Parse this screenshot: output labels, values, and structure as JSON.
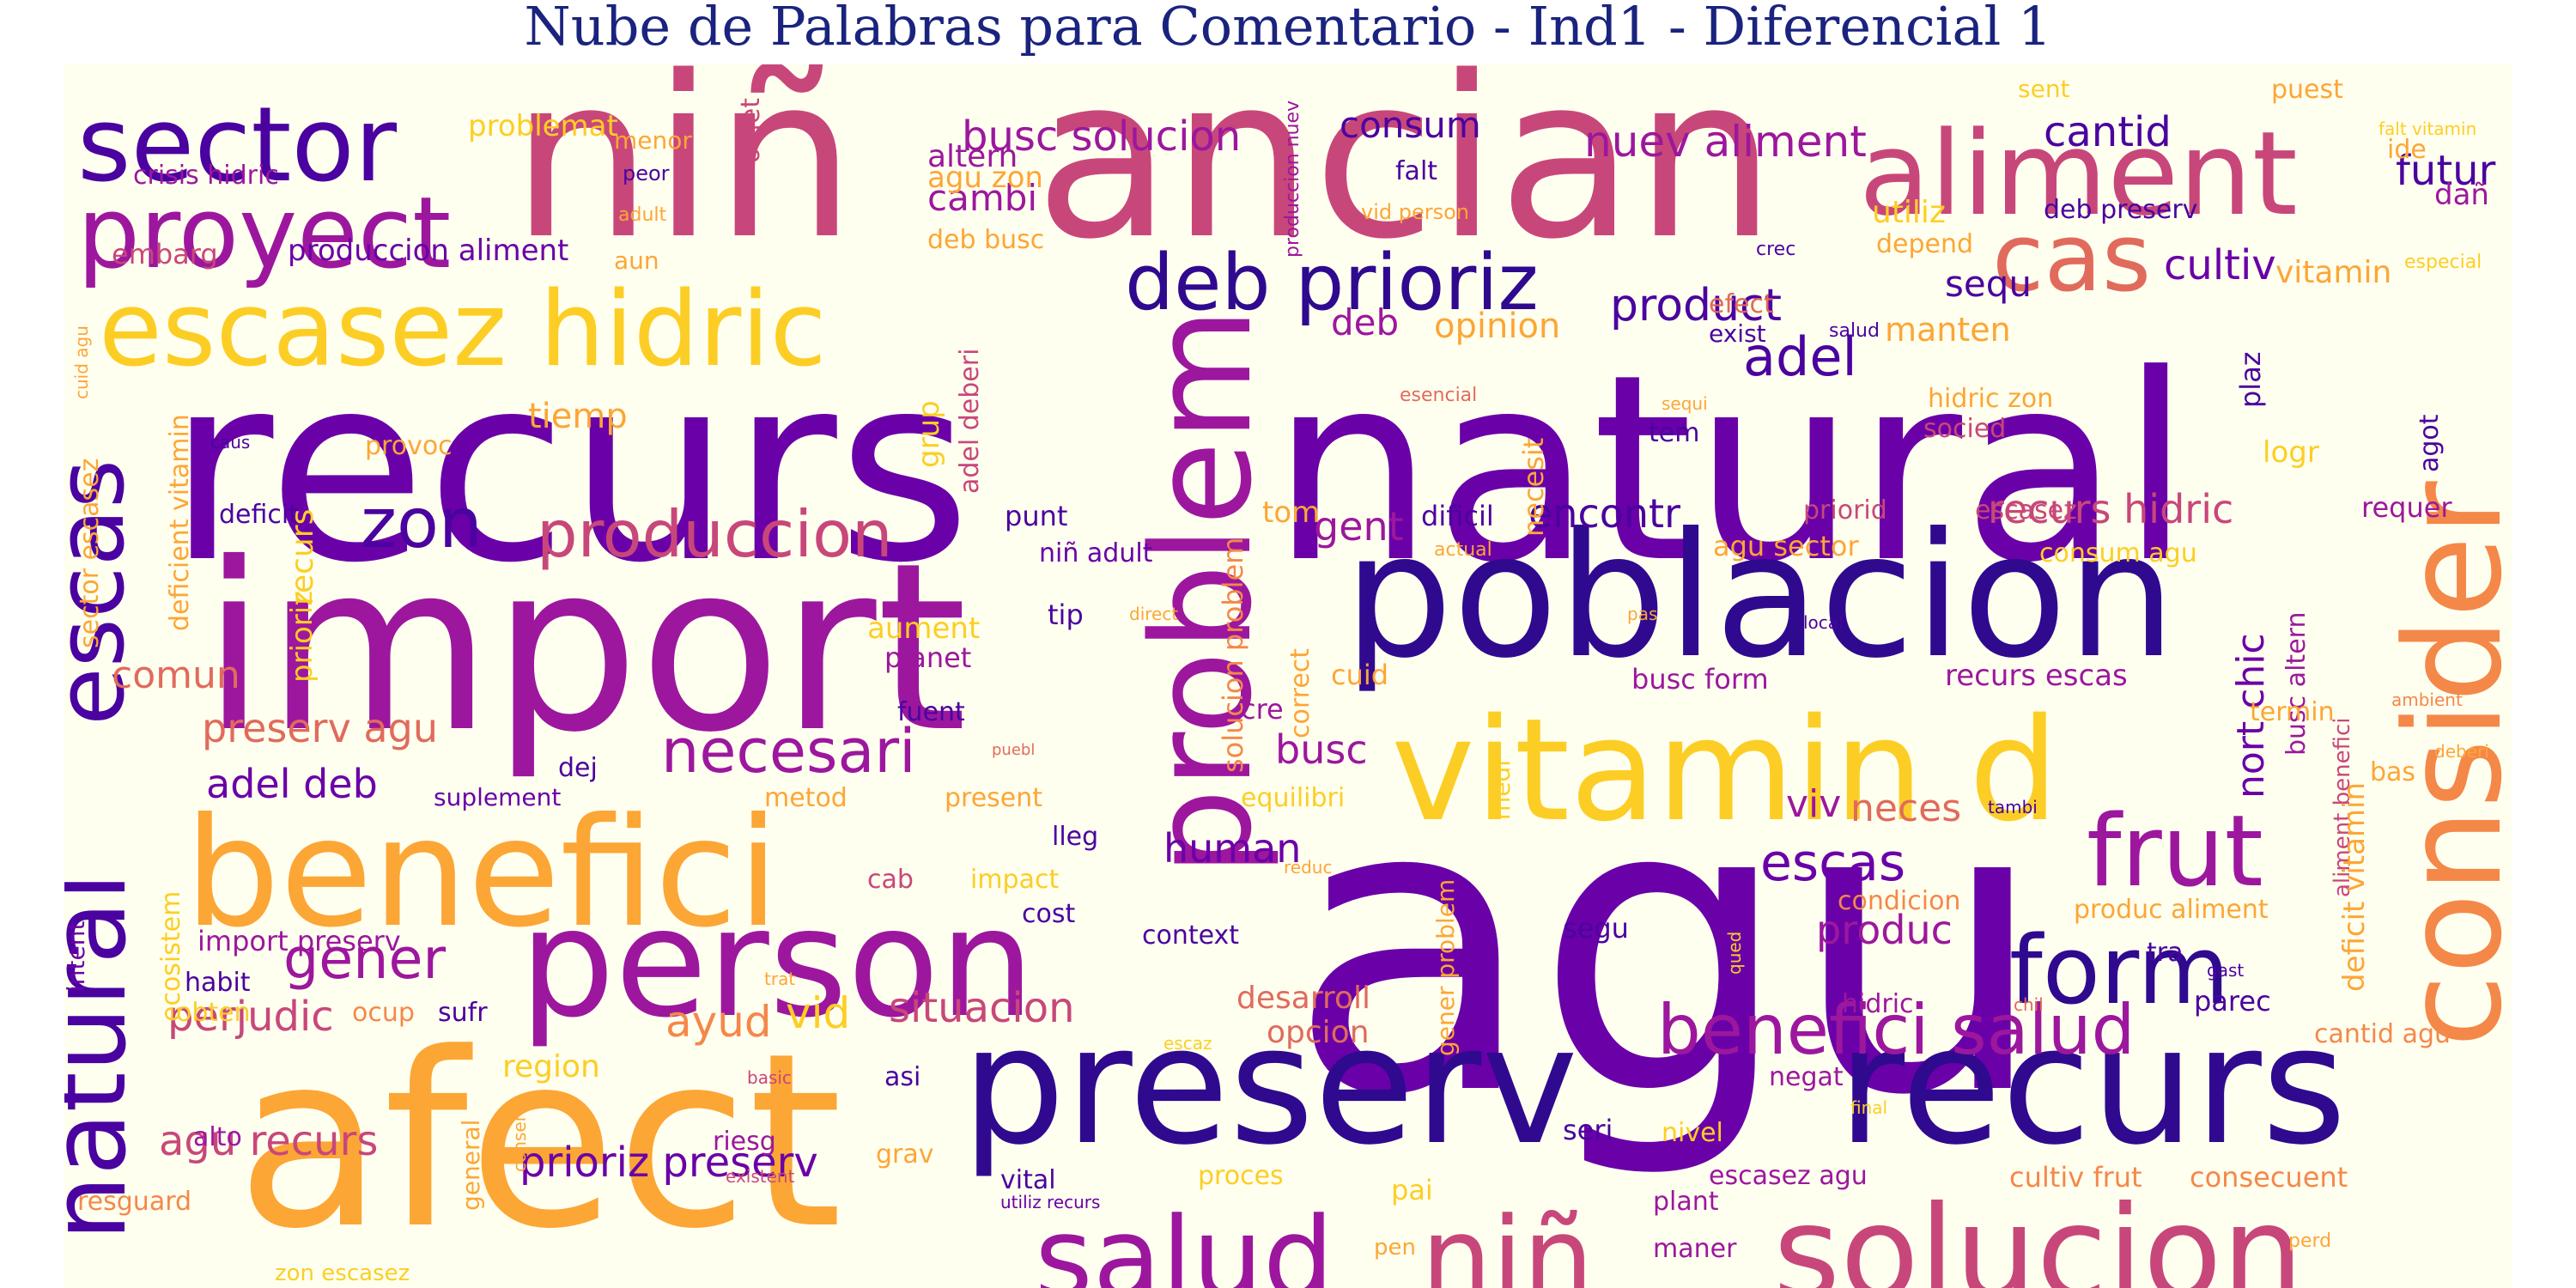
{
  "title": "Nube de Palabras para Comentario - Ind1 - Diferencial 1",
  "colors": {
    "background": "#fffff0",
    "title": "#1a237e",
    "palette": [
      "#2f0a8f",
      "#6a00a8",
      "#9c179e",
      "#c8477a",
      "#e06b5c",
      "#f48849",
      "#fca636",
      "#f0d63e"
    ]
  },
  "words": [
    {
      "text": "agu",
      "color": "#6a00a8"
    },
    {
      "text": "recurs",
      "color": "#6a00a8"
    },
    {
      "text": "natural",
      "color": "#6a00a8"
    },
    {
      "text": "import",
      "color": "#9c179e"
    },
    {
      "text": "niñ",
      "color": "#c8477a"
    },
    {
      "text": "ancian",
      "color": "#c8477a"
    },
    {
      "text": "afect",
      "color": "#fca636"
    },
    {
      "text": "problem",
      "color": "#9c179e"
    },
    {
      "text": "consider",
      "color": "#f48849"
    },
    {
      "text": "poblacion",
      "color": "#2f0a8f"
    },
    {
      "text": "preserv",
      "color": "#2f0a8f"
    },
    {
      "text": "recurs",
      "color": "#2f0a8f"
    },
    {
      "text": "benefici",
      "color": "#fca636"
    },
    {
      "text": "person",
      "color": "#9c179e"
    },
    {
      "text": "vitamin d",
      "color": "#fcce25"
    },
    {
      "text": "solucion",
      "color": "#c8477a"
    },
    {
      "text": "escasez hidric",
      "color": "#fcce25"
    },
    {
      "text": "aliment",
      "color": "#c8477a"
    },
    {
      "text": "sector",
      "color": "#4a02a0"
    },
    {
      "text": "proyect",
      "color": "#9c179e"
    },
    {
      "text": "natural",
      "color": "#4a02a0"
    },
    {
      "text": "escas",
      "color": "#4a02a0"
    },
    {
      "text": "salud",
      "color": "#9c179e"
    },
    {
      "text": "niñ",
      "color": "#c8477a"
    },
    {
      "text": "deb prioriz",
      "color": "#2f0a8f"
    },
    {
      "text": "cas",
      "color": "#e06b5c"
    },
    {
      "text": "frut",
      "color": "#9c179e"
    },
    {
      "text": "form",
      "color": "#2f0a8f"
    },
    {
      "text": "benefici salud",
      "color": "#9c179e"
    },
    {
      "text": "zon",
      "color": "#4a02a0"
    },
    {
      "text": "produccion",
      "color": "#c8477a"
    },
    {
      "text": "necesari",
      "color": "#9c179e"
    },
    {
      "text": "gener",
      "color": "#9c179e"
    },
    {
      "text": "escas",
      "color": "#6a00a8"
    },
    {
      "text": "adel",
      "color": "#4a02a0"
    },
    {
      "text": "product",
      "color": "#4a02a0"
    },
    {
      "text": "cultiv",
      "color": "#6a00a8"
    },
    {
      "text": "futur",
      "color": "#4a02a0"
    },
    {
      "text": "cantid",
      "color": "#4a02a0"
    },
    {
      "text": "nuev aliment",
      "color": "#9c179e"
    },
    {
      "text": "busc solucion",
      "color": "#9c179e"
    },
    {
      "text": "consum",
      "color": "#4a02a0"
    },
    {
      "text": "preserv agu",
      "color": "#e06b5c"
    },
    {
      "text": "adel deb",
      "color": "#6a00a8"
    },
    {
      "text": "comun",
      "color": "#e06b5c"
    },
    {
      "text": "perjudic",
      "color": "#c8477a"
    },
    {
      "text": "ayud",
      "color": "#f48849"
    },
    {
      "text": "vid",
      "color": "#fcce25"
    },
    {
      "text": "situacion",
      "color": "#c8477a"
    },
    {
      "text": "agu recurs",
      "color": "#c8477a"
    },
    {
      "text": "prioriz preserv",
      "color": "#6a00a8"
    },
    {
      "text": "encontr",
      "color": "#4a02a0"
    },
    {
      "text": "recurs hidric",
      "color": "#c8477a"
    },
    {
      "text": "gent",
      "color": "#9c179e"
    },
    {
      "text": "human",
      "color": "#6a00a8"
    },
    {
      "text": "produc",
      "color": "#9c179e"
    },
    {
      "text": "viv",
      "color": "#9c179e"
    },
    {
      "text": "neces",
      "color": "#e06b5c"
    },
    {
      "text": "busc",
      "color": "#9c179e"
    },
    {
      "text": "sequ",
      "color": "#4a02a0"
    },
    {
      "text": "deb",
      "color": "#9c179e"
    },
    {
      "text": "opinion",
      "color": "#fca636"
    },
    {
      "text": "manten",
      "color": "#fca636"
    },
    {
      "text": "cambi",
      "color": "#9c179e"
    },
    {
      "text": "altern",
      "color": "#9c179e"
    },
    {
      "text": "agu zon",
      "color": "#fca636"
    },
    {
      "text": "deb busc",
      "color": "#fca636"
    },
    {
      "text": "problemat",
      "color": "#fcce25"
    },
    {
      "text": "menor",
      "color": "#fca636"
    },
    {
      "text": "objet",
      "color": "#c8477a"
    },
    {
      "text": "crisis hidric",
      "color": "#9c179e"
    },
    {
      "text": "peor",
      "color": "#4a02a0"
    },
    {
      "text": "adult",
      "color": "#fca636"
    },
    {
      "text": "embarg",
      "color": "#c8477a"
    },
    {
      "text": "produccion aliment",
      "color": "#6a00a8"
    },
    {
      "text": "aun",
      "color": "#fca636"
    },
    {
      "text": "falt",
      "color": "#4a02a0"
    },
    {
      "text": "vid person",
      "color": "#fca636"
    },
    {
      "text": "produccion nuev",
      "color": "#9c179e"
    },
    {
      "text": "utiliz",
      "color": "#fcce25"
    },
    {
      "text": "deb preserv",
      "color": "#4a02a0"
    },
    {
      "text": "depend",
      "color": "#fca636"
    },
    {
      "text": "crec",
      "color": "#4a02a0"
    },
    {
      "text": "efect",
      "color": "#e06b5c"
    },
    {
      "text": "exist",
      "color": "#4a02a0"
    },
    {
      "text": "salud",
      "color": "#4a02a0"
    },
    {
      "text": "vitamin",
      "color": "#fca636"
    },
    {
      "text": "especial",
      "color": "#fcce25"
    },
    {
      "text": "ide",
      "color": "#fca636"
    },
    {
      "text": "dañ",
      "color": "#9c179e"
    },
    {
      "text": "sent",
      "color": "#fcce25"
    },
    {
      "text": "puest",
      "color": "#fca636"
    },
    {
      "text": "falt vitamin",
      "color": "#fcce25"
    },
    {
      "text": "tiemp",
      "color": "#fca636"
    },
    {
      "text": "provoc",
      "color": "#fca636"
    },
    {
      "text": "deficit",
      "color": "#4a02a0"
    },
    {
      "text": "recurs",
      "color": "#fcce25"
    },
    {
      "text": "prioriz",
      "color": "#fcce25"
    },
    {
      "text": "caus",
      "color": "#4a02a0"
    },
    {
      "text": "deficient vitamin",
      "color": "#fca636"
    },
    {
      "text": "sector escasez",
      "color": "#fca636"
    },
    {
      "text": "cuid agu",
      "color": "#fca636"
    },
    {
      "text": "grup",
      "color": "#fcce25"
    },
    {
      "text": "adel deberi",
      "color": "#c8477a"
    },
    {
      "text": "esencial",
      "color": "#e06b5c"
    },
    {
      "text": "punt",
      "color": "#4a02a0"
    },
    {
      "text": "niñ adult",
      "color": "#6a00a8"
    },
    {
      "text": "dificil",
      "color": "#4a02a0"
    },
    {
      "text": "actual",
      "color": "#fca636"
    },
    {
      "text": "tom",
      "color": "#fca636"
    },
    {
      "text": "necesit",
      "color": "#fca636"
    },
    {
      "text": "sequi",
      "color": "#fca636"
    },
    {
      "text": "tem",
      "color": "#4a02a0"
    },
    {
      "text": "hidric zon",
      "color": "#fca636"
    },
    {
      "text": "socied",
      "color": "#c8477a"
    },
    {
      "text": "priorid",
      "color": "#c8477a"
    },
    {
      "text": "escasez",
      "color": "#c8477a"
    },
    {
      "text": "agu sector",
      "color": "#fca636"
    },
    {
      "text": "consum agu",
      "color": "#fcce25"
    },
    {
      "text": "plaz",
      "color": "#4a02a0"
    },
    {
      "text": "agot",
      "color": "#4a02a0"
    },
    {
      "text": "logr",
      "color": "#fcce25"
    },
    {
      "text": "requer",
      "color": "#9c179e"
    },
    {
      "text": "tip",
      "color": "#4a02a0"
    },
    {
      "text": "direct",
      "color": "#fca636"
    },
    {
      "text": "aument",
      "color": "#fcce25"
    },
    {
      "text": "planet",
      "color": "#9c179e"
    },
    {
      "text": "solucion problem",
      "color": "#f48849"
    },
    {
      "text": "correct",
      "color": "#fca636"
    },
    {
      "text": "pas",
      "color": "#fca636"
    },
    {
      "text": "local",
      "color": "#4a02a0"
    },
    {
      "text": "nort chic",
      "color": "#6a00a8"
    },
    {
      "text": "busc altern",
      "color": "#9c179e"
    },
    {
      "text": "aliment benefici",
      "color": "#c8477a"
    },
    {
      "text": "deficit vitamin",
      "color": "#fca636"
    },
    {
      "text": "cuid",
      "color": "#fca636"
    },
    {
      "text": "cre",
      "color": "#9c179e"
    },
    {
      "text": "busc form",
      "color": "#9c179e"
    },
    {
      "text": "recurs escas",
      "color": "#9c179e"
    },
    {
      "text": "ambient",
      "color": "#f48849"
    },
    {
      "text": "termin",
      "color": "#fca636"
    },
    {
      "text": "fuent",
      "color": "#4a02a0"
    },
    {
      "text": "puebl",
      "color": "#e06b5c"
    },
    {
      "text": "dej",
      "color": "#4a02a0"
    },
    {
      "text": "suplement",
      "color": "#6a00a8"
    },
    {
      "text": "metod",
      "color": "#fca636"
    },
    {
      "text": "present",
      "color": "#fca636"
    },
    {
      "text": "equilibri",
      "color": "#fcce25"
    },
    {
      "text": "medi",
      "color": "#fcce25"
    },
    {
      "text": "bas",
      "color": "#fca636"
    },
    {
      "text": "deberi",
      "color": "#fca636"
    },
    {
      "text": "lleg",
      "color": "#4a02a0"
    },
    {
      "text": "impact",
      "color": "#fcce25"
    },
    {
      "text": "cab",
      "color": "#c8477a"
    },
    {
      "text": "cost",
      "color": "#4a02a0"
    },
    {
      "text": "reduc",
      "color": "#fca636"
    },
    {
      "text": "tambi",
      "color": "#4a02a0"
    },
    {
      "text": "context",
      "color": "#4a02a0"
    },
    {
      "text": "segu",
      "color": "#4a02a0"
    },
    {
      "text": "gener problem",
      "color": "#fca636"
    },
    {
      "text": "qued",
      "color": "#fcce25"
    },
    {
      "text": "condicion",
      "color": "#f48849"
    },
    {
      "text": "produc aliment",
      "color": "#fca636"
    },
    {
      "text": "hidric",
      "color": "#9c179e"
    },
    {
      "text": "tra",
      "color": "#4a02a0"
    },
    {
      "text": "gast",
      "color": "#4a02a0"
    },
    {
      "text": "chil",
      "color": "#e06b5c"
    },
    {
      "text": "parec",
      "color": "#4a02a0"
    },
    {
      "text": "intent",
      "color": "#6a00a8"
    },
    {
      "text": "ecosistem",
      "color": "#fcce25"
    },
    {
      "text": "import preserv",
      "color": "#9c179e"
    },
    {
      "text": "habit",
      "color": "#4a02a0"
    },
    {
      "text": "obten",
      "color": "#fcce25"
    },
    {
      "text": "ocup",
      "color": "#f48849"
    },
    {
      "text": "sufr",
      "color": "#4a02a0"
    },
    {
      "text": "trat",
      "color": "#fca636"
    },
    {
      "text": "desarroll",
      "color": "#e06b5c"
    },
    {
      "text": "opcion",
      "color": "#e06b5c"
    },
    {
      "text": "escaz",
      "color": "#fcce25"
    },
    {
      "text": "cantid agu",
      "color": "#f48849"
    },
    {
      "text": "region",
      "color": "#fcce25"
    },
    {
      "text": "basic",
      "color": "#c8477a"
    },
    {
      "text": "asi",
      "color": "#4a02a0"
    },
    {
      "text": "negat",
      "color": "#9c179e"
    },
    {
      "text": "final",
      "color": "#fcce25"
    },
    {
      "text": "alto",
      "color": "#9c179e"
    },
    {
      "text": "conserv",
      "color": "#fca636"
    },
    {
      "text": "general",
      "color": "#fca636"
    },
    {
      "text": "riesg",
      "color": "#9c179e"
    },
    {
      "text": "existent",
      "color": "#c8477a"
    },
    {
      "text": "grav",
      "color": "#fca636"
    },
    {
      "text": "seri",
      "color": "#4a02a0"
    },
    {
      "text": "nivel",
      "color": "#fcce25"
    },
    {
      "text": "resguard",
      "color": "#f48849"
    },
    {
      "text": "vital",
      "color": "#4a02a0"
    },
    {
      "text": "utiliz recurs",
      "color": "#6a00a8"
    },
    {
      "text": "proces",
      "color": "#fcce25"
    },
    {
      "text": "pai",
      "color": "#fcce25"
    },
    {
      "text": "escasez agu",
      "color": "#9c179e"
    },
    {
      "text": "plant",
      "color": "#9c179e"
    },
    {
      "text": "cultiv frut",
      "color": "#f48849"
    },
    {
      "text": "consecuent",
      "color": "#f48849"
    },
    {
      "text": "maner",
      "color": "#9c179e"
    },
    {
      "text": "pen",
      "color": "#fca636"
    },
    {
      "text": "perd",
      "color": "#fca636"
    },
    {
      "text": "zon escasez",
      "color": "#fcce25"
    }
  ]
}
